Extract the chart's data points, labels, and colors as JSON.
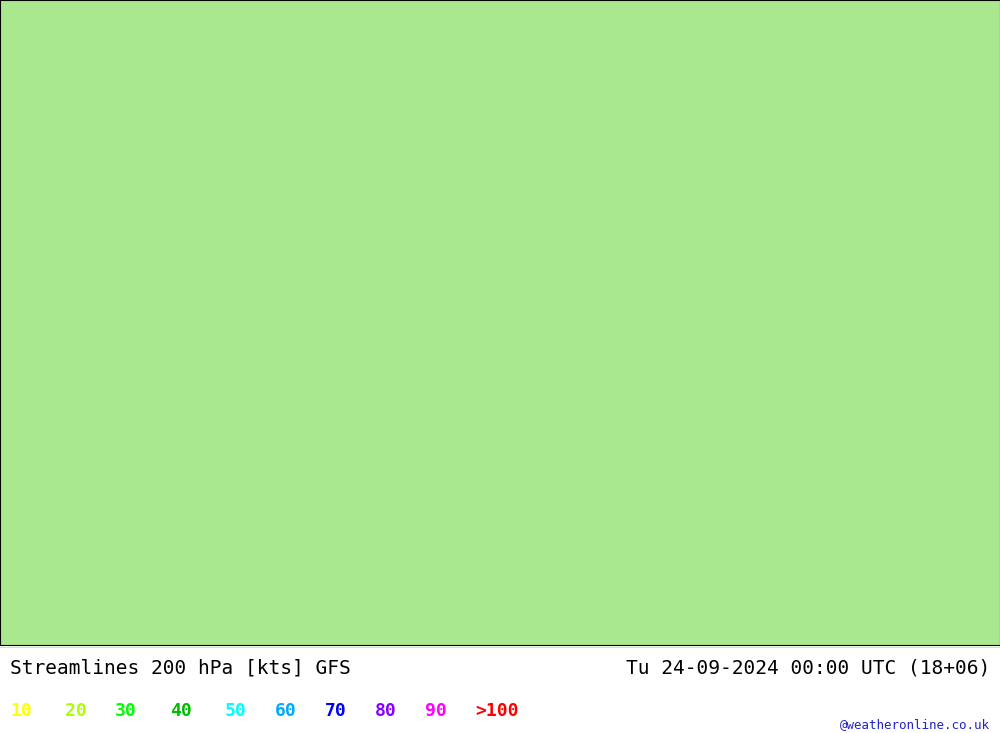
{
  "title_left": "Streamlines 200 hPa [kts] GFS",
  "title_right": "Tu 24-09-2024 00:00 UTC (18+06)",
  "watermark": "@weatheronline.co.uk",
  "legend_values": [
    "10",
    "20",
    "30",
    "40",
    "50",
    "60",
    "70",
    "80",
    "90",
    ">100"
  ],
  "legend_colors": [
    "#ffff00",
    "#aaff00",
    "#00ff00",
    "#00bb00",
    "#00ffff",
    "#00aaff",
    "#0000ff",
    "#8800ff",
    "#ff00ff",
    "#ff0000"
  ],
  "bg_color": "#ffffff",
  "land_color": "#aae890",
  "ocean_color": "#d8d8d8",
  "coast_color": "#888888",
  "fig_width": 10.0,
  "fig_height": 7.33,
  "dpi": 100,
  "lon_min": -30,
  "lon_max": 70,
  "lat_min": 15,
  "lat_max": 80,
  "title_fontsize": 14,
  "legend_fontsize": 13
}
